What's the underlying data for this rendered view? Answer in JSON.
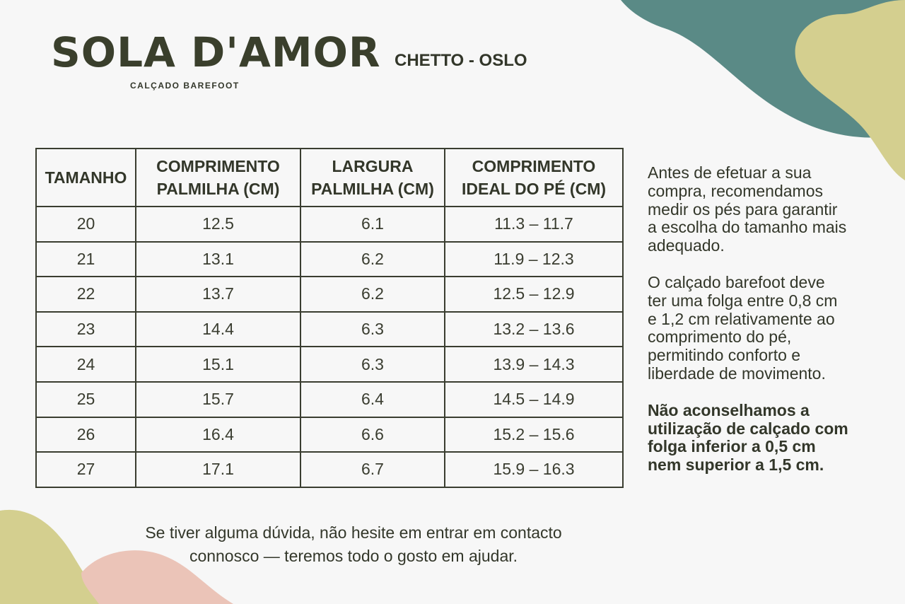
{
  "header": {
    "logo": "SOLA D'AMOR",
    "tagline": "CALÇADO BAREFOOT",
    "product": "CHETTO - OSLO"
  },
  "table": {
    "columns": [
      [
        "TAMANHO"
      ],
      [
        "COMPRIMENTO",
        "PALMILHA (CM)"
      ],
      [
        "LARGURA",
        "PALMILHA (CM)"
      ],
      [
        "COMPRIMENTO",
        "IDEAL DO PÉ (CM)"
      ]
    ],
    "rows": [
      [
        "20",
        "12.5",
        "6.1",
        "11.3 –  11.7"
      ],
      [
        "21",
        "13.1",
        "6.2",
        "11.9 –  12.3"
      ],
      [
        "22",
        "13.7",
        "6.2",
        "12.5 –  12.9"
      ],
      [
        "23",
        "14.4",
        "6.3",
        "13.2 –  13.6"
      ],
      [
        "24",
        "15.1",
        "6.3",
        "13.9 –  14.3"
      ],
      [
        "25",
        "15.7",
        "6.4",
        "14.5 – 14.9"
      ],
      [
        "26",
        "16.4",
        "6.6",
        "15.2 – 15.6"
      ],
      [
        "27",
        "17.1",
        "6.7",
        "15.9 – 16.3"
      ]
    ]
  },
  "side_text": [
    [
      "Antes de efetuar a sua",
      "compra, recomendamos",
      "medir os pés para garantir",
      "a escolha do tamanho mais",
      "adequado."
    ],
    [
      "O calçado barefoot deve",
      "ter uma folga entre 0,8 cm",
      "e 1,2 cm relativamente ao",
      "comprimento do pé,",
      "permitindo conforto e",
      "liberdade de movimento."
    ],
    [
      "Não aconselhamos a",
      "utilização de calçado com",
      "folga inferior a 0,5 cm",
      "nem superior a 1,5 cm."
    ]
  ],
  "footer": [
    "Se tiver alguma dúvida, não hesite em entrar em contacto",
    "connosco — teremos todo o gosto em ajudar."
  ]
}
